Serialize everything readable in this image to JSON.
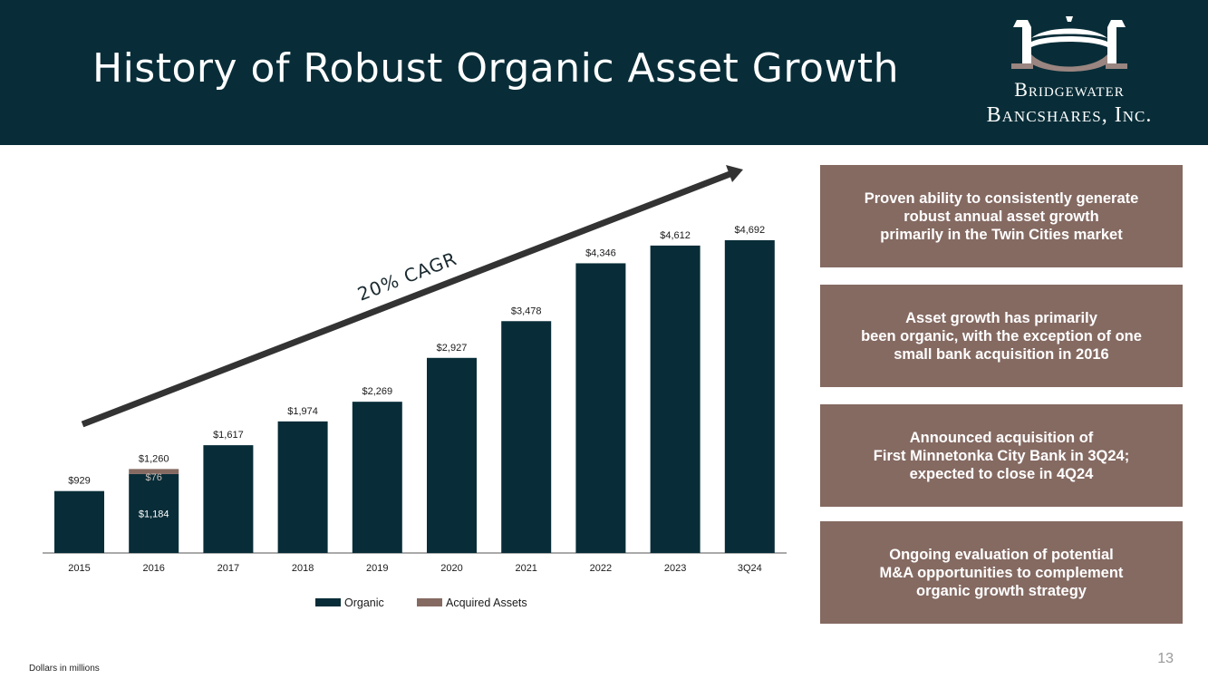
{
  "header": {
    "title": "History of Robust Organic Asset Growth",
    "background": "#082d38"
  },
  "logo": {
    "line1": "Bridgewater",
    "line2": "Bancshares, Inc."
  },
  "chart_data": {
    "type": "bar",
    "stacked": true,
    "categories": [
      "2015",
      "2016",
      "2017",
      "2018",
      "2019",
      "2020",
      "2021",
      "2022",
      "2023",
      "3Q24"
    ],
    "series": [
      {
        "name": "Organic",
        "color": "#082d38",
        "values": [
          929,
          1184,
          1617,
          1974,
          2269,
          2927,
          3478,
          4346,
          4612,
          4692
        ]
      },
      {
        "name": "Acquired Assets",
        "color": "#856a62",
        "values": [
          0,
          76,
          0,
          0,
          0,
          0,
          0,
          0,
          0,
          0
        ]
      }
    ],
    "total_labels": [
      "$929",
      "$1,260",
      "$1,617",
      "$1,974",
      "$2,269",
      "$2,927",
      "$3,478",
      "$4,346",
      "$4,612",
      "$4,692"
    ],
    "inside_labels": [
      {
        "category": "2016",
        "text": "$76",
        "series": "Acquired Assets"
      },
      {
        "category": "2016",
        "text": "$1,184",
        "series": "Organic"
      }
    ],
    "annotation": "20% CAGR",
    "ylim": [
      0,
      4692
    ],
    "grid": false,
    "legend": "bottom-center",
    "xlabel": "",
    "ylabel": ""
  },
  "cards": [
    {
      "text": "Proven ability to consistently generate\nrobust annual asset growth\nprimarily in the Twin Cities market"
    },
    {
      "text": "Asset growth has primarily\nbeen organic, with the exception of one\nsmall bank acquisition in 2016"
    },
    {
      "text": "Announced acquisition of\nFirst Minnetonka City Bank in 3Q24;\nexpected to close in 4Q24"
    },
    {
      "text": "Ongoing evaluation of potential\nM&A opportunities to complement\norganic growth strategy"
    }
  ],
  "card_color": "#856a62",
  "footnote": "Dollars in millions",
  "page_number": "13"
}
